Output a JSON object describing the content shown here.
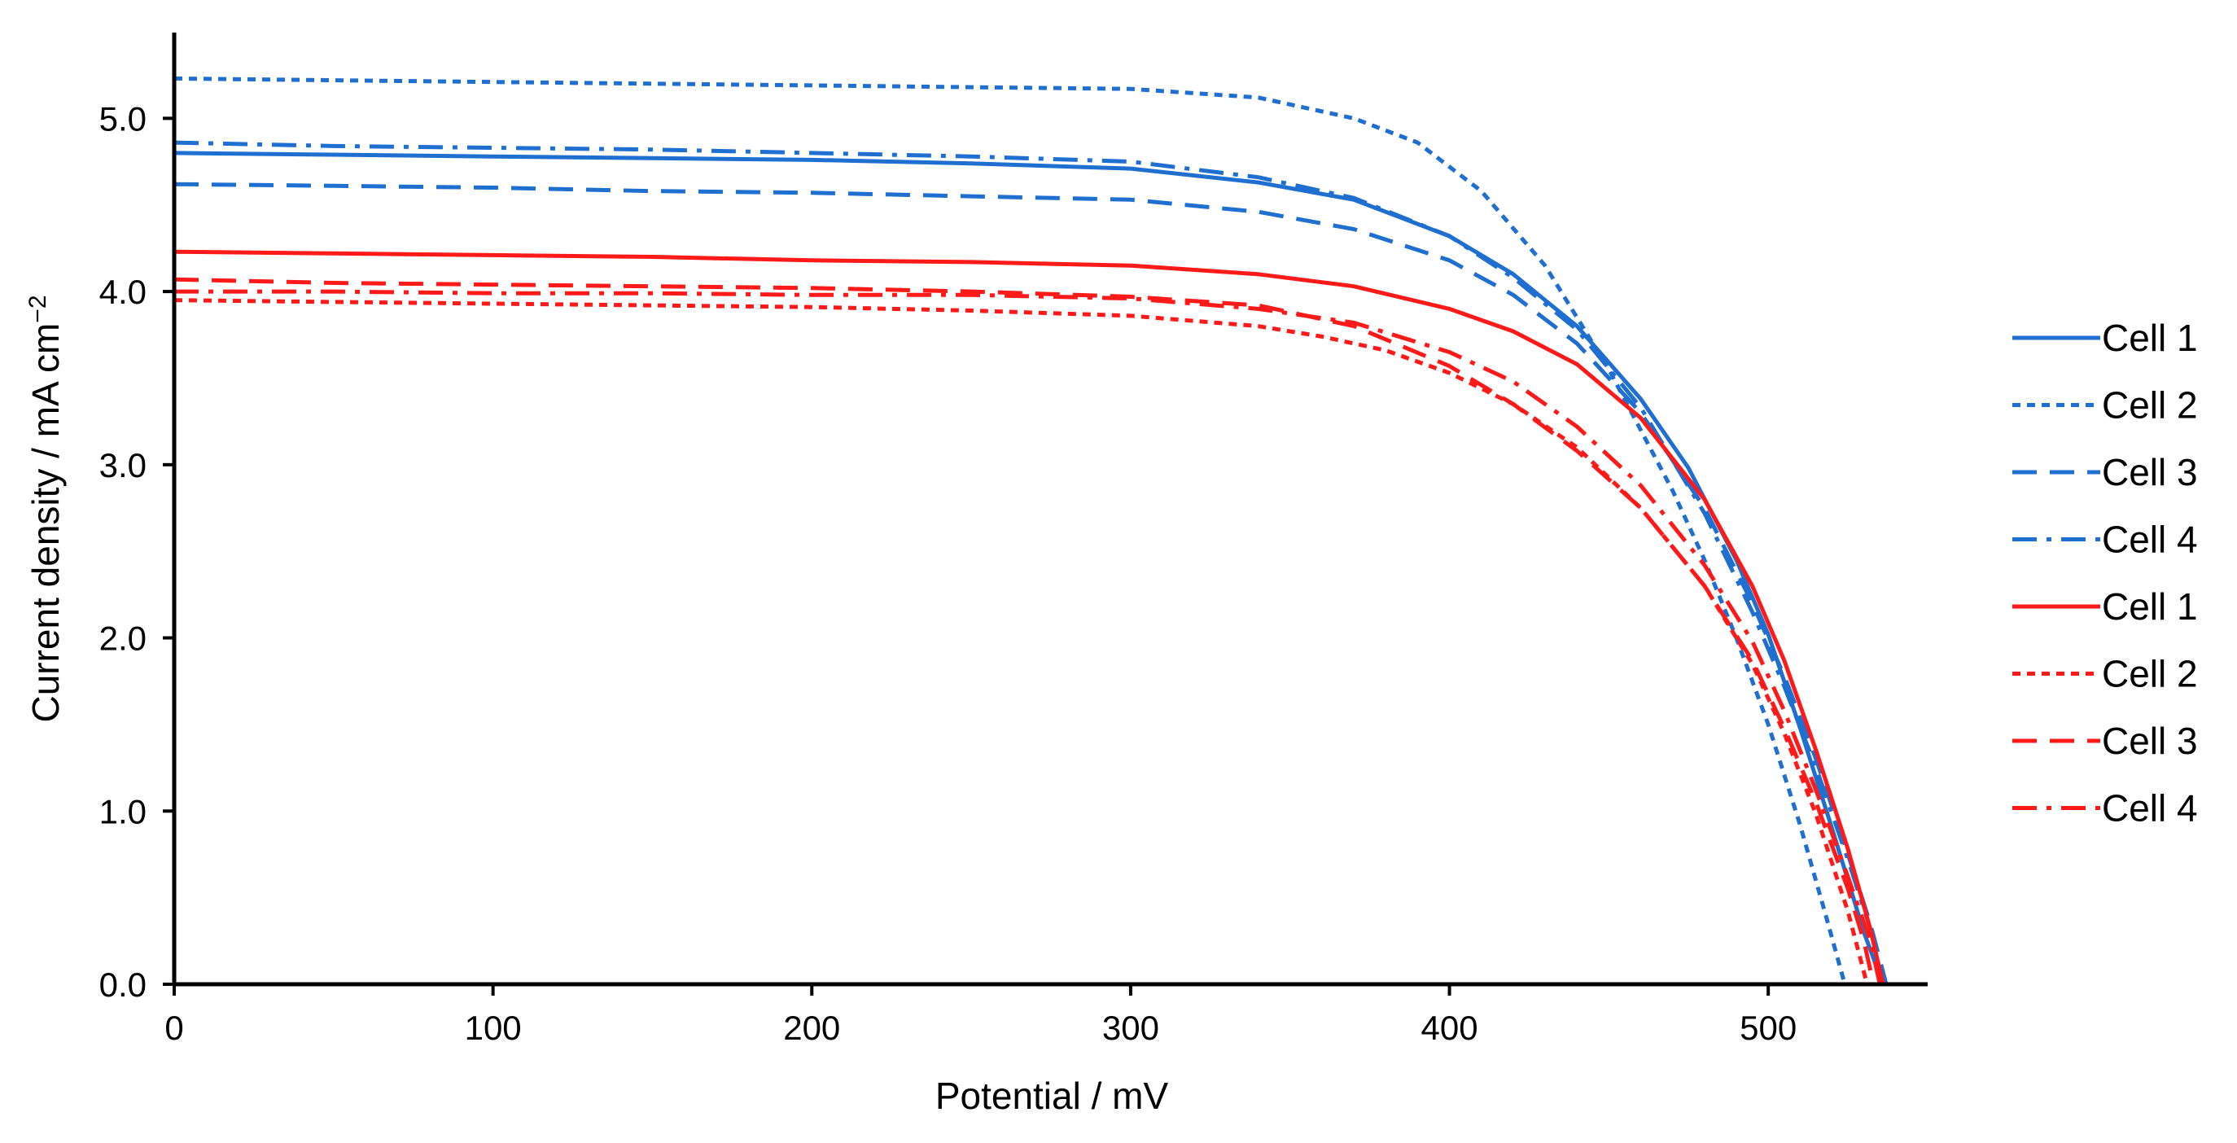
{
  "chart_data": {
    "type": "line",
    "title": "",
    "xlabel": "Potential / mV",
    "ylabel_main": "Current density / mA cm",
    "ylabel_sup": "−2",
    "xlim": [
      0,
      550
    ],
    "ylim": [
      0,
      5.5
    ],
    "x_ticks": [
      0,
      100,
      200,
      300,
      400,
      500
    ],
    "x_tick_labels": [
      "0",
      "100",
      "200",
      "300",
      "400",
      "500"
    ],
    "y_ticks": [
      0,
      1,
      2,
      3,
      4,
      5
    ],
    "y_tick_labels": [
      "0.0",
      "1.0",
      "2.0",
      "3.0",
      "4.0",
      "5.0"
    ],
    "grid": false,
    "legend_position": "right",
    "series": [
      {
        "name": "Cell 1",
        "color": "#1f6fd1",
        "dash": "solid",
        "x": [
          0,
          50,
          100,
          150,
          200,
          250,
          300,
          340,
          370,
          400,
          420,
          440,
          460,
          475,
          490,
          500,
          510,
          520,
          530,
          536
        ],
        "y": [
          4.8,
          4.79,
          4.78,
          4.77,
          4.76,
          4.74,
          4.71,
          4.63,
          4.53,
          4.32,
          4.1,
          3.8,
          3.38,
          2.98,
          2.45,
          2.02,
          1.48,
          0.9,
          0.3,
          0.0
        ]
      },
      {
        "name": "Cell 2",
        "color": "#1f6fd1",
        "dash": "short-dash",
        "x": [
          0,
          50,
          100,
          150,
          200,
          250,
          300,
          340,
          370,
          390,
          410,
          430,
          450,
          470,
          480,
          490,
          500,
          510,
          518,
          524
        ],
        "y": [
          5.23,
          5.22,
          5.21,
          5.2,
          5.19,
          5.18,
          5.17,
          5.12,
          5.0,
          4.86,
          4.58,
          4.15,
          3.55,
          2.85,
          2.45,
          2.0,
          1.5,
          0.92,
          0.4,
          0.0
        ]
      },
      {
        "name": "Cell 3",
        "color": "#1f6fd1",
        "dash": "long-dash",
        "x": [
          0,
          50,
          100,
          150,
          200,
          250,
          300,
          340,
          370,
          400,
          420,
          440,
          460,
          480,
          495,
          505,
          515,
          525,
          532,
          537
        ],
        "y": [
          4.62,
          4.61,
          4.6,
          4.58,
          4.57,
          4.55,
          4.53,
          4.46,
          4.36,
          4.18,
          3.98,
          3.7,
          3.3,
          2.75,
          2.2,
          1.78,
          1.3,
          0.75,
          0.35,
          0.0
        ]
      },
      {
        "name": "Cell 4",
        "color": "#1f6fd1",
        "dash": "dash-dot",
        "x": [
          0,
          50,
          100,
          150,
          200,
          250,
          300,
          340,
          370,
          400,
          420,
          440,
          460,
          480,
          495,
          505,
          515,
          525,
          532,
          536
        ],
        "y": [
          4.86,
          4.84,
          4.83,
          4.82,
          4.8,
          4.78,
          4.75,
          4.66,
          4.54,
          4.32,
          4.08,
          3.78,
          3.33,
          2.72,
          2.15,
          1.72,
          1.25,
          0.72,
          0.32,
          0.0
        ]
      },
      {
        "name": "Cell 1",
        "color": "#ff1a1a",
        "dash": "solid",
        "x": [
          0,
          50,
          100,
          150,
          200,
          250,
          300,
          340,
          370,
          400,
          420,
          440,
          460,
          480,
          495,
          505,
          515,
          525,
          532,
          536
        ],
        "y": [
          4.23,
          4.22,
          4.21,
          4.2,
          4.18,
          4.17,
          4.15,
          4.1,
          4.03,
          3.9,
          3.77,
          3.58,
          3.27,
          2.8,
          2.3,
          1.87,
          1.35,
          0.78,
          0.32,
          0.0
        ]
      },
      {
        "name": "Cell 2",
        "color": "#ff1a1a",
        "dash": "short-dash",
        "x": [
          0,
          50,
          100,
          150,
          200,
          250,
          300,
          340,
          360,
          380,
          400,
          420,
          440,
          460,
          480,
          495,
          505,
          515,
          525,
          531
        ],
        "y": [
          3.95,
          3.94,
          3.93,
          3.92,
          3.91,
          3.89,
          3.86,
          3.8,
          3.74,
          3.66,
          3.53,
          3.35,
          3.1,
          2.75,
          2.3,
          1.85,
          1.45,
          0.98,
          0.42,
          0.0
        ]
      },
      {
        "name": "Cell 3",
        "color": "#ff1a1a",
        "dash": "long-dash",
        "x": [
          0,
          50,
          100,
          150,
          200,
          250,
          300,
          340,
          370,
          400,
          420,
          440,
          460,
          480,
          495,
          505,
          515,
          525,
          530,
          533
        ],
        "y": [
          4.07,
          4.05,
          4.04,
          4.03,
          4.02,
          4.0,
          3.97,
          3.92,
          3.8,
          3.57,
          3.35,
          3.08,
          2.75,
          2.3,
          1.87,
          1.48,
          1.05,
          0.55,
          0.25,
          0.0
        ]
      },
      {
        "name": "Cell 4",
        "color": "#ff1a1a",
        "dash": "dash-dot",
        "x": [
          0,
          50,
          100,
          150,
          200,
          250,
          300,
          340,
          370,
          400,
          420,
          440,
          460,
          480,
          495,
          505,
          515,
          525,
          532,
          535
        ],
        "y": [
          4.0,
          4.0,
          3.99,
          3.99,
          3.98,
          3.98,
          3.96,
          3.9,
          3.82,
          3.65,
          3.48,
          3.22,
          2.88,
          2.42,
          1.98,
          1.58,
          1.12,
          0.62,
          0.25,
          0.0
        ]
      }
    ]
  }
}
